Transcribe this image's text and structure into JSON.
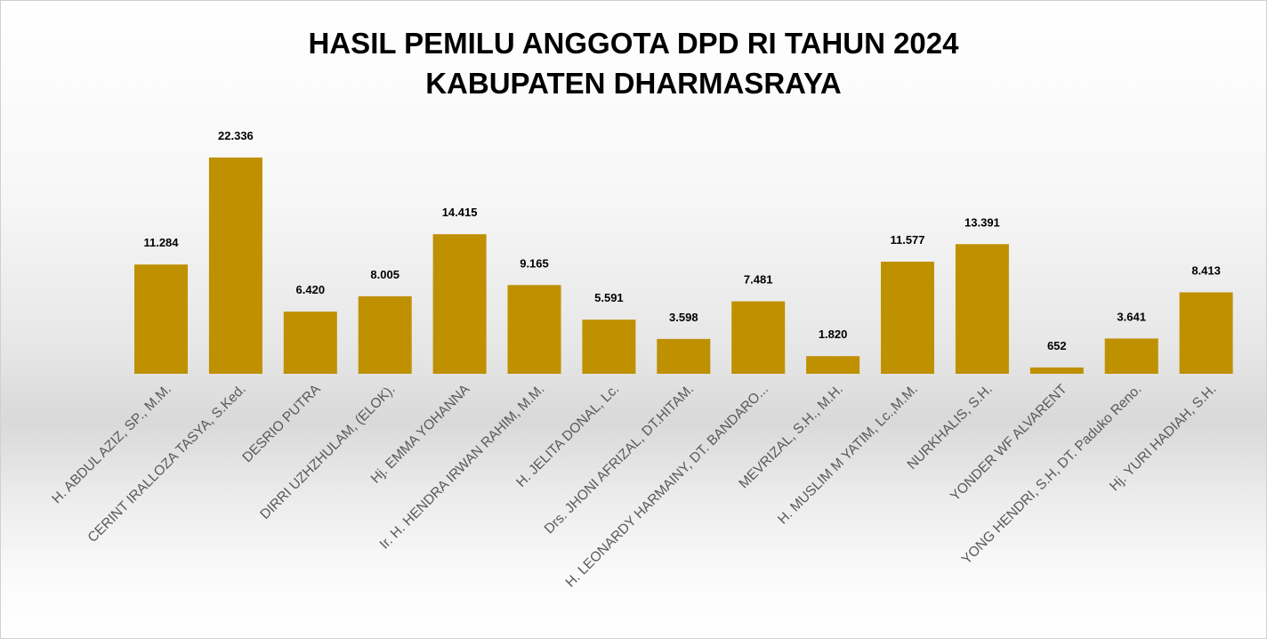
{
  "chart_data": {
    "type": "bar",
    "title": [
      "HASIL PEMILU ANGGOTA DPD RI TAHUN 2024",
      "KABUPATEN DHARMASRAYA"
    ],
    "xlabel": "",
    "ylabel": "",
    "ylim": [
      0,
      24000
    ],
    "grid": false,
    "legend": "none",
    "bar_color": "#BF9000",
    "categories": [
      "H. ABDUL AZIZ, SP., M.M.",
      "CERINT IRALLOZA TASYA, S.Ked.",
      "DESRIO PUTRA",
      "DIRRI UZHZHULAM, (ELOK).",
      "Hj. EMMA YOHANNA",
      "Ir. H. HENDRA IRWAN RAHIM, M.M.",
      "H. JELITA DONAL, Lc.",
      "Drs. JHONI AFRIZAL, DT.HITAM.",
      "H. LEONARDY HARMAINY, DT. BANDARO...",
      "MEVRIZAL, S.H., M.H.",
      "H. MUSLIM M YATIM, Lc.,M.M.",
      "NURKHALIS, S.H.",
      "YONDER WF ALVARENT",
      "YONG HENDRI, S.H, DT. Paduko Reno.",
      "Hj. YURI HADIAH, S.H."
    ],
    "values": [
      11284,
      22336,
      6420,
      8005,
      14415,
      9165,
      5591,
      3598,
      7481,
      1820,
      11577,
      13391,
      652,
      3641,
      8413
    ],
    "data_labels": [
      "11.284",
      "22.336",
      "6.420",
      "8.005",
      "14.415",
      "9.165",
      "5.591",
      "3.598",
      "7.481",
      "1.820",
      "11.577",
      "13.391",
      "652",
      "3.641",
      "8.413"
    ]
  }
}
